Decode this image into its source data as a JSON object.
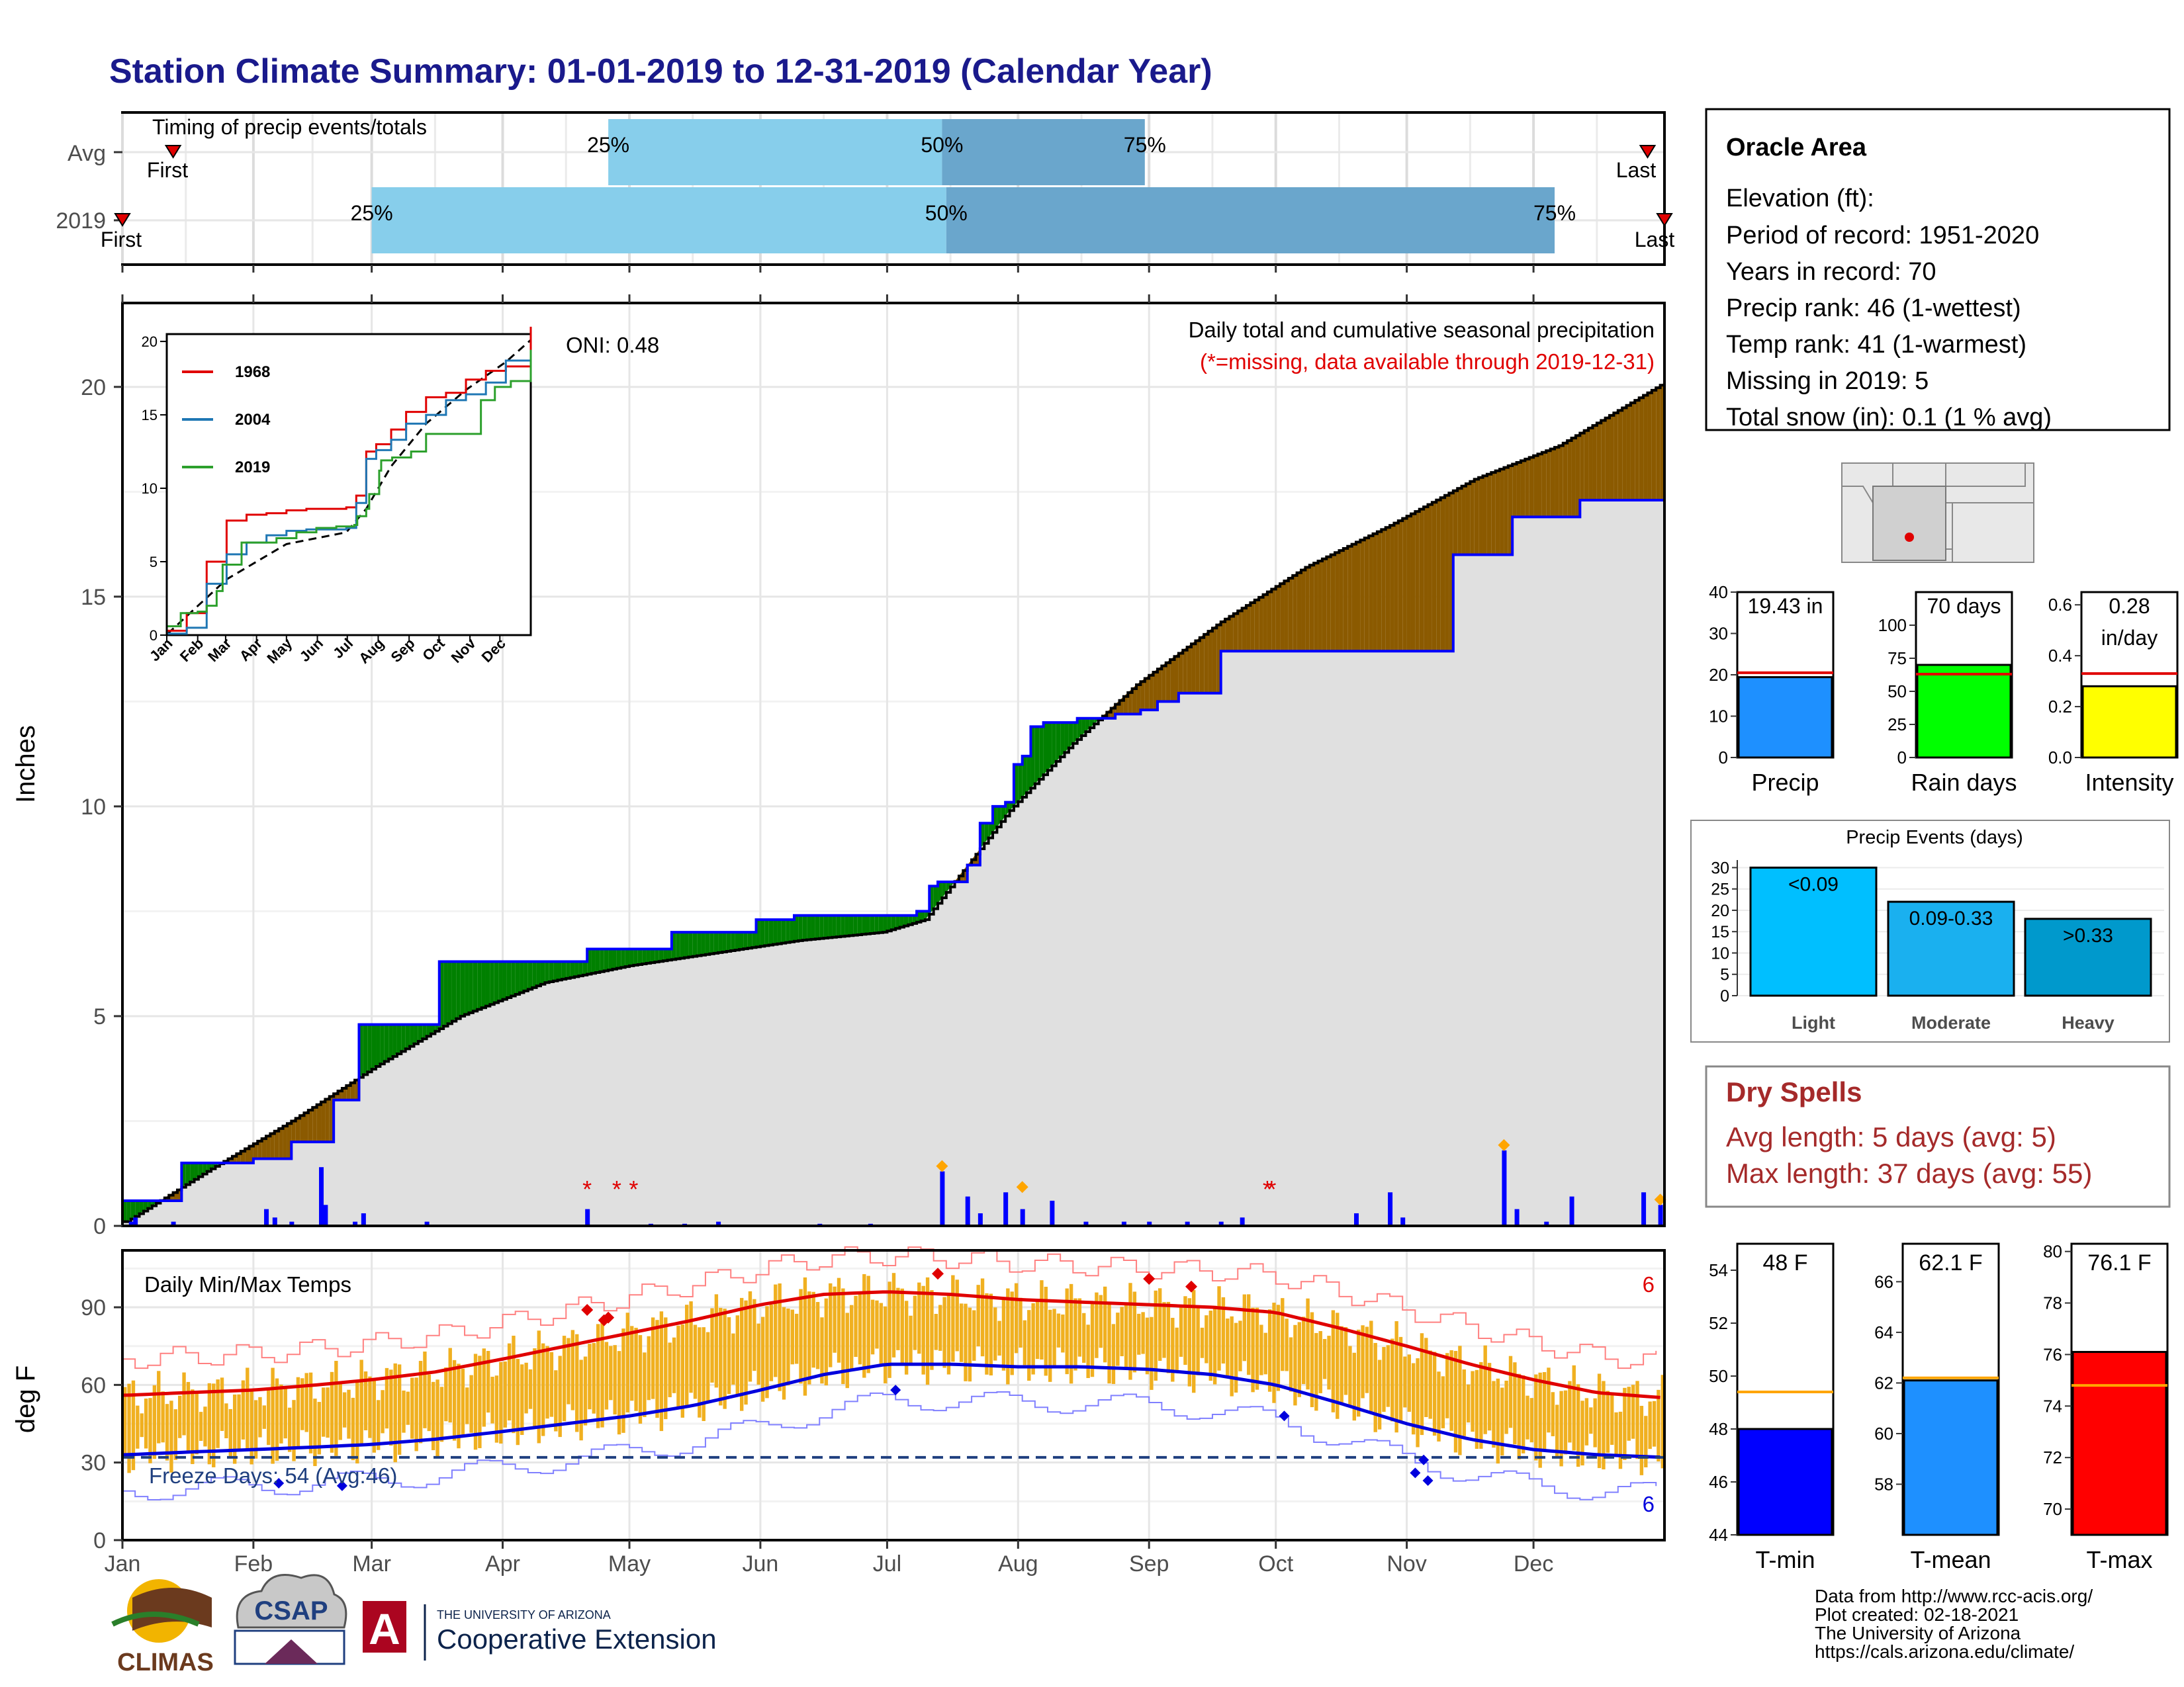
{
  "title": "Station Climate Summary: 01-01-2019 to 12-31-2019 (Calendar Year)",
  "colors": {
    "title": "#1a1a8c",
    "avg_bar_light": "#87ceeb",
    "avg_bar_dark": "#6aa6cc",
    "above_avg": "#008000",
    "below_avg": "#8b5a00",
    "cum_fill": "#e0e0e0",
    "daily_bar": "#0000ff",
    "red": "#e00000",
    "orange": "#ffa500",
    "temp_bar": "#f0b020",
    "tmin_line": "#0000dd",
    "tmax_line": "#e00000",
    "dry_spell": "#a52a2a",
    "heavy_gold": "#ffa500"
  },
  "timing": {
    "label": "Timing of precip events/totals",
    "rows": [
      {
        "name": "Avg",
        "first_label": "First",
        "last_label": "Last",
        "q25": "25%",
        "q50": "50%",
        "q75": "75%",
        "first_doy": 12,
        "p25_doy": 115,
        "p50_doy": 194,
        "p75_doy": 242,
        "last_doy": 361
      },
      {
        "name": "2019",
        "first_label": "First",
        "last_label": "Last",
        "q25": "25%",
        "q50": "50%",
        "q75": "75%",
        "first_doy": 0,
        "p25_doy": 59,
        "p50_doy": 195,
        "p75_doy": 339,
        "last_doy": 365
      }
    ]
  },
  "precip_panel": {
    "ylabel": "Inches",
    "yticks": [
      "0",
      "5",
      "10",
      "15",
      "20"
    ],
    "note_line1": "Daily total and cumulative seasonal precipitation",
    "note_line2": "(*=missing, data available through 2019-12-31)",
    "oni": "ONI: 0.48",
    "missing_marker": "*"
  },
  "inset": {
    "yticks": [
      "0",
      "5",
      "10",
      "15",
      "20"
    ],
    "months": [
      "Jan",
      "Feb",
      "Mar",
      "Apr",
      "May",
      "Jun",
      "Jul",
      "Aug",
      "Sep",
      "Oct",
      "Nov",
      "Dec"
    ],
    "legend": [
      "1968",
      "2004",
      "2019"
    ],
    "series_colors": [
      "#e00000",
      "#1f77b4",
      "#2ca02c"
    ]
  },
  "temp_panel": {
    "ylabel": "deg F",
    "title": "Daily Min/Max Temps",
    "yticks": [
      "0",
      "30",
      "60",
      "90"
    ],
    "freeze": "Freeze Days: 54 (Avg:46)",
    "record_high_count": "6",
    "record_low_count": "6"
  },
  "months": [
    "Jan",
    "Feb",
    "Mar",
    "Apr",
    "May",
    "Jun",
    "Jul",
    "Aug",
    "Sep",
    "Oct",
    "Nov",
    "Dec"
  ],
  "station": {
    "name": "Oracle Area",
    "elevation": "Elevation (ft):",
    "period": "Period of record: 1951-2020",
    "years": "Years in record: 70",
    "precip_rank": "Precip rank: 46 (1-wettest)",
    "temp_rank": "Temp rank: 41 (1-warmest)",
    "missing": "Missing in 2019: 5",
    "snow": "Total snow (in): 0.1 (1 % avg)"
  },
  "summary_bars": [
    {
      "label": "Precip",
      "value_text": "19.43 in",
      "value": 19.43,
      "avg": 20.5,
      "ymax": 40,
      "yticks": [
        "0",
        "10",
        "20",
        "30",
        "40"
      ],
      "tickvals": [
        0,
        10,
        20,
        30,
        40
      ],
      "color": "#1e90ff"
    },
    {
      "label": "Rain days",
      "value_text": "70 days",
      "value": 70,
      "avg": 63,
      "ymax": 125,
      "yticks": [
        "0",
        "25",
        "50",
        "75",
        "100"
      ],
      "tickvals": [
        0,
        25,
        50,
        75,
        100
      ],
      "color": "#00ff00"
    },
    {
      "label": "Intensity",
      "value_text": "0.28",
      "value_text2": "in/day",
      "value": 0.28,
      "avg": 0.33,
      "ymax": 0.65,
      "yticks": [
        "0.0",
        "0.2",
        "0.4",
        "0.6"
      ],
      "tickvals": [
        0,
        0.2,
        0.4,
        0.6
      ],
      "color": "#ffff00"
    }
  ],
  "precip_events": {
    "title": "Precip Events (days)",
    "yticks": [
      "0",
      "5",
      "10",
      "15",
      "20",
      "25",
      "30"
    ],
    "bars": [
      {
        "label": "Light",
        "range": "<0.09",
        "value": 30,
        "color": "#00bfff"
      },
      {
        "label": "Moderate",
        "range": "0.09-0.33",
        "value": 22,
        "color": "#1ab0ef"
      },
      {
        "label": "Heavy",
        "range": ">0.33",
        "value": 18,
        "color": "#0099cc"
      }
    ]
  },
  "dry_spells": {
    "title": "Dry Spells",
    "avg": "Avg length: 5 days (avg: 5)",
    "max": "Max length: 37 days (avg: 55)"
  },
  "temp_bars": [
    {
      "label": "T-min",
      "value_text": "48 F",
      "value": 48,
      "avg": 49.4,
      "ymin": 44,
      "ymax": 55,
      "yticks": [
        "44",
        "46",
        "48",
        "50",
        "52",
        "54"
      ],
      "tickvals": [
        44,
        46,
        48,
        50,
        52,
        54
      ],
      "color": "#0000ff"
    },
    {
      "label": "T-mean",
      "value_text": "62.1 F",
      "value": 62.1,
      "avg": 62.2,
      "ymin": 56,
      "ymax": 67.5,
      "yticks": [
        "58",
        "60",
        "62",
        "64",
        "66"
      ],
      "tickvals": [
        58,
        60,
        62,
        64,
        66
      ],
      "color": "#1e90ff"
    },
    {
      "label": "T-max",
      "value_text": "76.1 F",
      "value": 76.1,
      "avg": 74.8,
      "ymin": 69,
      "ymax": 80.3,
      "yticks": [
        "70",
        "72",
        "74",
        "76",
        "78",
        "80"
      ],
      "tickvals": [
        70,
        72,
        74,
        76,
        78,
        80
      ],
      "color": "#ff0000"
    }
  ],
  "credits": [
    "Data from http://www.rcc-acis.org/",
    "Plot created: 02-18-2021",
    "The University of Arizona",
    "https://cals.arizona.edu/climate/"
  ],
  "logos": {
    "climas": "CLIMAS",
    "csap": "CSAP",
    "ua_small": "THE UNIVERSITY OF ARIZONA",
    "ua_big": "Cooperative Extension"
  },
  "chart_data": [
    {
      "type": "area",
      "title": "Daily total and cumulative seasonal precipitation",
      "ylabel": "Inches",
      "ylim": [
        0,
        22
      ],
      "x_unit": "day of year 2019",
      "cumulative_2019": {
        "x": [
          1,
          14,
          31,
          40,
          50,
          56,
          75,
          90,
          110,
          130,
          150,
          159,
          170,
          185,
          188,
          191,
          193,
          200,
          203,
          206,
          209,
          211,
          213,
          215,
          218,
          226,
          235,
          241,
          245,
          250,
          260,
          300,
          315,
          329,
          345,
          365
        ],
        "y": [
          0.6,
          1.5,
          1.6,
          2.0,
          3.0,
          4.8,
          6.3,
          6.3,
          6.6,
          7.0,
          7.3,
          7.4,
          7.4,
          7.4,
          7.5,
          8.1,
          8.2,
          8.6,
          9.6,
          10.0,
          10.1,
          11.0,
          11.2,
          11.9,
          12.0,
          12.1,
          12.2,
          12.3,
          12.5,
          12.7,
          13.7,
          13.7,
          16.0,
          16.9,
          17.3,
          19.43
        ]
      },
      "cumulative_avg": {
        "x": [
          1,
          20,
          40,
          60,
          80,
          100,
          120,
          140,
          160,
          180,
          190,
          200,
          210,
          225,
          240,
          260,
          280,
          300,
          320,
          340,
          365
        ],
        "y": [
          0.1,
          1.3,
          2.5,
          3.8,
          5.0,
          5.8,
          6.2,
          6.5,
          6.8,
          7.0,
          7.3,
          8.6,
          9.9,
          11.5,
          12.9,
          14.4,
          15.7,
          16.7,
          17.8,
          18.6,
          20.1
        ]
      },
      "daily_bars": {
        "x": [
          2,
          3,
          12,
          34,
          36,
          40,
          47,
          48,
          55,
          57,
          72,
          110,
          125,
          133,
          141,
          165,
          177,
          194,
          200,
          203,
          209,
          213,
          220,
          228,
          237,
          243,
          252,
          260,
          265,
          292,
          300,
          303,
          327,
          330,
          337,
          343,
          360,
          364
        ],
        "y": [
          0.1,
          0.2,
          0.1,
          0.4,
          0.2,
          0.1,
          1.4,
          0.5,
          0.1,
          0.3,
          0.1,
          0.4,
          0.05,
          0.05,
          0.1,
          0.05,
          0.05,
          1.3,
          0.7,
          0.3,
          0.8,
          0.4,
          0.6,
          0.1,
          0.1,
          0.1,
          0.1,
          0.1,
          0.2,
          0.3,
          0.8,
          0.2,
          1.8,
          0.4,
          0.1,
          0.7,
          0.8,
          0.5
        ]
      },
      "missing_days": [
        110,
        117,
        121,
        271,
        272
      ]
    },
    {
      "type": "line",
      "title": "",
      "series": [
        {
          "name": "1968",
          "x": [
            1,
            20,
            40,
            60,
            80,
            100,
            120,
            140,
            160,
            180,
            190,
            200,
            210,
            225,
            240,
            260,
            280,
            300,
            320,
            340,
            365
          ],
          "y": [
            0.3,
            1.5,
            5.0,
            7.8,
            8.2,
            8.3,
            8.5,
            8.6,
            8.6,
            8.7,
            9.5,
            12.5,
            13.0,
            14.0,
            15.2,
            16.2,
            16.5,
            17.4,
            18.0,
            18.3,
            21.0
          ]
        },
        {
          "name": "2004",
          "x": [
            1,
            20,
            40,
            60,
            80,
            100,
            120,
            140,
            160,
            180,
            190,
            200,
            210,
            225,
            240,
            260,
            280,
            300,
            320,
            340,
            365
          ],
          "y": [
            0.1,
            0.5,
            3.5,
            5.5,
            6.3,
            6.8,
            7.1,
            7.2,
            7.2,
            7.3,
            9.0,
            12.0,
            12.6,
            13.3,
            14.4,
            15.0,
            16.0,
            16.4,
            17.2,
            18.7,
            19.0
          ]
        },
        {
          "name": "2019",
          "x": [
            1,
            14,
            31,
            40,
            50,
            56,
            75,
            90,
            110,
            130,
            150,
            170,
            188,
            191,
            200,
            203,
            213,
            215,
            226,
            245,
            260,
            300,
            315,
            329,
            345,
            365
          ],
          "y": [
            0.6,
            1.5,
            1.6,
            2.0,
            3.0,
            4.8,
            6.3,
            6.3,
            6.6,
            7.0,
            7.3,
            7.4,
            7.5,
            8.1,
            8.6,
            9.6,
            11.2,
            11.9,
            12.1,
            12.5,
            13.7,
            13.7,
            16.0,
            16.9,
            17.3,
            19.43
          ]
        }
      ],
      "avg": {
        "x": [
          1,
          60,
          120,
          180,
          200,
          225,
          260,
          300,
          340,
          365
        ],
        "y": [
          0.1,
          3.8,
          6.2,
          7.0,
          8.6,
          11.5,
          14.4,
          16.7,
          18.6,
          20.1
        ]
      },
      "ylim": [
        0,
        20
      ]
    },
    {
      "type": "bar",
      "title": "Daily Min/Max Temps",
      "ylabel": "deg F",
      "ylim": [
        0,
        112
      ],
      "avg_tmax": {
        "x": [
          1,
          15,
          31,
          46,
          59,
          74,
          90,
          105,
          120,
          135,
          151,
          166,
          181,
          196,
          212,
          227,
          243,
          258,
          273,
          288,
          304,
          319,
          334,
          349,
          365
        ],
        "y": [
          56,
          57,
          58,
          60,
          62,
          65,
          70,
          75,
          80,
          85,
          91,
          95,
          96,
          95,
          93,
          92,
          91,
          90,
          88,
          82,
          75,
          68,
          62,
          57,
          55
        ]
      },
      "avg_tmin": {
        "x": [
          1,
          15,
          31,
          46,
          59,
          74,
          90,
          105,
          120,
          135,
          151,
          166,
          181,
          196,
          212,
          227,
          243,
          258,
          273,
          288,
          304,
          319,
          334,
          349,
          365
        ],
        "y": [
          33,
          34,
          35,
          36,
          37,
          39,
          42,
          45,
          48,
          52,
          58,
          64,
          68,
          68,
          67,
          67,
          66,
          64,
          60,
          53,
          45,
          39,
          35,
          33,
          32
        ]
      },
      "freeze_line": 32,
      "freeze_days": 54
    },
    {
      "type": "bar",
      "title": "",
      "categories": [
        "Precip",
        "Rain days",
        "Intensity"
      ],
      "values": [
        19.43,
        70,
        0.28
      ]
    },
    {
      "type": "bar",
      "title": "Precip Events (days)",
      "categories": [
        "Light",
        "Moderate",
        "Heavy"
      ],
      "values": [
        30,
        22,
        18
      ]
    },
    {
      "type": "bar",
      "title": "",
      "categories": [
        "T-min",
        "T-mean",
        "T-max"
      ],
      "values": [
        48,
        62.1,
        76.1
      ]
    }
  ]
}
